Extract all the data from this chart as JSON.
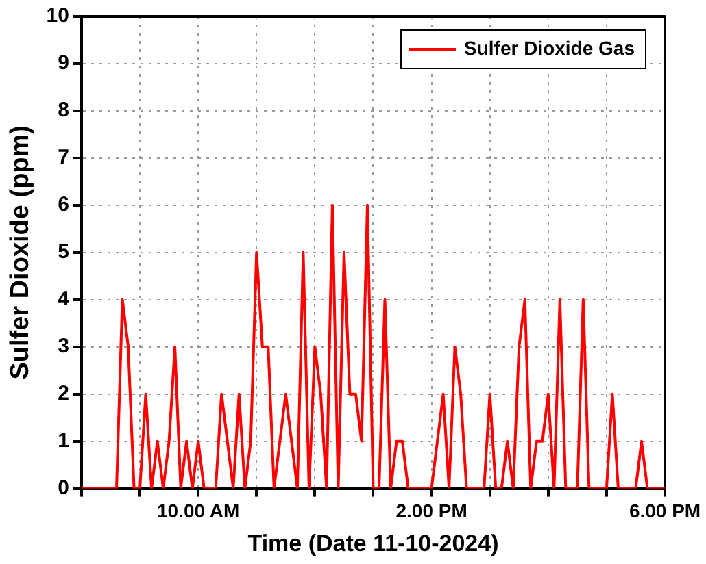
{
  "chart_data": {
    "type": "line",
    "xlabel": "Time (Date 11-10-2024)",
    "ylabel": "Sulfer Dioxide (ppm)",
    "xlim": [
      "2024-10-11T08:00",
      "2024-10-11T18:00"
    ],
    "xticks": [
      {
        "value": "2024-10-11T08:00",
        "label": null
      },
      {
        "value": "2024-10-11T09:00",
        "label": null
      },
      {
        "value": "2024-10-11T10:00",
        "label": "10.00 AM"
      },
      {
        "value": "2024-10-11T11:00",
        "label": null
      },
      {
        "value": "2024-10-11T12:00",
        "label": null
      },
      {
        "value": "2024-10-11T13:00",
        "label": null
      },
      {
        "value": "2024-10-11T14:00",
        "label": "2.00 PM"
      },
      {
        "value": "2024-10-11T15:00",
        "label": null
      },
      {
        "value": "2024-10-11T16:00",
        "label": null
      },
      {
        "value": "2024-10-11T17:00",
        "label": null
      },
      {
        "value": "2024-10-11T18:00",
        "label": "6.00 PM"
      }
    ],
    "ylim": [
      0,
      10
    ],
    "yticks": [
      0,
      1,
      2,
      3,
      4,
      5,
      6,
      7,
      8,
      9,
      10
    ],
    "grid": true,
    "legend": "top right",
    "marker": "none",
    "line_style": "solid",
    "series": [
      {
        "name": "Sulfer Dioxide Gas",
        "color": "#ff0000",
        "x": [
          "2024-10-11T08:00",
          "2024-10-11T08:36",
          "2024-10-11T08:42",
          "2024-10-11T08:48",
          "2024-10-11T08:54",
          "2024-10-11T09:00",
          "2024-10-11T09:06",
          "2024-10-11T09:12",
          "2024-10-11T09:18",
          "2024-10-11T09:24",
          "2024-10-11T09:30",
          "2024-10-11T09:36",
          "2024-10-11T09:42",
          "2024-10-11T09:48",
          "2024-10-11T09:54",
          "2024-10-11T10:00",
          "2024-10-11T10:06",
          "2024-10-11T10:18",
          "2024-10-11T10:24",
          "2024-10-11T10:36",
          "2024-10-11T10:42",
          "2024-10-11T10:48",
          "2024-10-11T10:54",
          "2024-10-11T11:00",
          "2024-10-11T11:06",
          "2024-10-11T11:12",
          "2024-10-11T11:18",
          "2024-10-11T11:30",
          "2024-10-11T11:42",
          "2024-10-11T11:48",
          "2024-10-11T11:54",
          "2024-10-11T12:00",
          "2024-10-11T12:06",
          "2024-10-11T12:12",
          "2024-10-11T12:18",
          "2024-10-11T12:24",
          "2024-10-11T12:30",
          "2024-10-11T12:36",
          "2024-10-11T12:42",
          "2024-10-11T12:48",
          "2024-10-11T12:54",
          "2024-10-11T13:00",
          "2024-10-11T13:06",
          "2024-10-11T13:12",
          "2024-10-11T13:18",
          "2024-10-11T13:24",
          "2024-10-11T13:30",
          "2024-10-11T13:36",
          "2024-10-11T14:00",
          "2024-10-11T14:12",
          "2024-10-11T14:18",
          "2024-10-11T14:24",
          "2024-10-11T14:30",
          "2024-10-11T14:36",
          "2024-10-11T14:54",
          "2024-10-11T15:00",
          "2024-10-11T15:06",
          "2024-10-11T15:12",
          "2024-10-11T15:18",
          "2024-10-11T15:24",
          "2024-10-11T15:30",
          "2024-10-11T15:36",
          "2024-10-11T15:42",
          "2024-10-11T15:48",
          "2024-10-11T15:54",
          "2024-10-11T16:00",
          "2024-10-11T16:06",
          "2024-10-11T16:12",
          "2024-10-11T16:18",
          "2024-10-11T16:30",
          "2024-10-11T16:36",
          "2024-10-11T16:42",
          "2024-10-11T17:00",
          "2024-10-11T17:06",
          "2024-10-11T17:12",
          "2024-10-11T17:30",
          "2024-10-11T17:36",
          "2024-10-11T17:42",
          "2024-10-11T18:00"
        ],
        "values": [
          0,
          0,
          4,
          3,
          0,
          0,
          2,
          0,
          1,
          0,
          1,
          3,
          0,
          1,
          0,
          1,
          0,
          0,
          2,
          0,
          2,
          0,
          1,
          5,
          3,
          3,
          0,
          2,
          0,
          5,
          0,
          3,
          2,
          0,
          6,
          0,
          5,
          2,
          2,
          1,
          6,
          0,
          0,
          4,
          0,
          1,
          1,
          0,
          0,
          2,
          0,
          3,
          2,
          0,
          0,
          2,
          0,
          0,
          1,
          0,
          3,
          4,
          0,
          1,
          1,
          2,
          0,
          4,
          0,
          0,
          4,
          0,
          0,
          2,
          0,
          0,
          1,
          0,
          0
        ]
      }
    ]
  }
}
